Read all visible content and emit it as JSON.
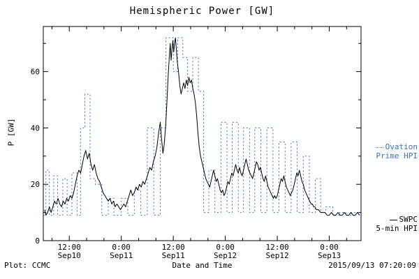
{
  "page": {
    "background": "#ffffff"
  },
  "footer": {
    "left": "Plot: CCMC",
    "right": "2015/09/13 07:20:09"
  },
  "legend": {
    "ovation_line1": "Ovation",
    "ovation_line2": "Prime HPI",
    "swpc_line1": "SWPC",
    "swpc_line2": "5-min HPI"
  },
  "chart_data": {
    "type": "line",
    "title": "Hemispheric Power [GW]",
    "xlabel": "Date and Time",
    "ylabel": "P [GW]",
    "xlim": [
      6,
      79.33
    ],
    "ylim": [
      0,
      76
    ],
    "grid": false,
    "legend_position": "right-outside",
    "x_axis_unit": "hours from 2015-09-10 00:00",
    "x_major_ticks": [
      {
        "t": 12,
        "line1": "12:00",
        "line2": "Sep10"
      },
      {
        "t": 24,
        "line1": "0:00",
        "line2": "Sep11"
      },
      {
        "t": 36,
        "line1": "12:00",
        "line2": "Sep11"
      },
      {
        "t": 48,
        "line1": "0:00",
        "line2": "Sep12"
      },
      {
        "t": 60,
        "line1": "12:00",
        "line2": "Sep12"
      },
      {
        "t": 72,
        "line1": "0:00",
        "line2": "Sep13"
      }
    ],
    "x_minor_step": 4,
    "y_major_ticks": [
      0,
      20,
      40,
      60
    ],
    "y_minor_ticks": [
      10,
      30,
      50,
      70
    ],
    "colors": {
      "ovation": "#3f6fbf",
      "swpc": "#000000",
      "frame": "#000000"
    },
    "series": [
      {
        "name": "Ovation Prime HPI",
        "color": "#3f6fbf",
        "style": "dotted-step",
        "steps": [
          [
            6,
            6.6,
            9
          ],
          [
            6.6,
            7.4,
            25
          ],
          [
            7.4,
            8.4,
            9
          ],
          [
            8.4,
            9.3,
            23
          ],
          [
            9.3,
            10.5,
            9
          ],
          [
            10.5,
            11.5,
            22
          ],
          [
            11.5,
            12.6,
            9
          ],
          [
            12.6,
            13.8,
            24
          ],
          [
            13.8,
            14.6,
            9
          ],
          [
            14.6,
            15.6,
            40
          ],
          [
            15.6,
            16.8,
            52
          ],
          [
            16.8,
            18,
            22
          ],
          [
            18,
            19.5,
            20
          ],
          [
            19.5,
            21,
            9
          ],
          [
            21,
            22.3,
            15
          ],
          [
            22.3,
            24,
            9
          ],
          [
            24,
            25.5,
            15
          ],
          [
            25.5,
            27,
            9
          ],
          [
            27,
            28.5,
            18
          ],
          [
            28.5,
            30,
            9
          ],
          [
            30,
            31.5,
            40
          ],
          [
            31.5,
            33,
            9
          ],
          [
            33,
            34.3,
            40
          ],
          [
            34.3,
            36,
            72
          ],
          [
            36,
            37,
            60
          ],
          [
            37,
            38.2,
            72
          ],
          [
            38.2,
            39.3,
            65
          ],
          [
            39.3,
            40.5,
            53
          ],
          [
            40.5,
            41.8,
            65
          ],
          [
            41.8,
            43,
            53
          ],
          [
            43,
            44.2,
            10
          ],
          [
            44.2,
            45.6,
            25
          ],
          [
            45.6,
            47,
            10
          ],
          [
            47,
            48.4,
            42
          ],
          [
            48.4,
            49.6,
            10
          ],
          [
            49.6,
            51,
            42
          ],
          [
            51,
            52.2,
            10
          ],
          [
            52.2,
            53.6,
            40
          ],
          [
            53.6,
            54.8,
            10
          ],
          [
            54.8,
            56.2,
            40
          ],
          [
            56.2,
            57.6,
            10
          ],
          [
            57.6,
            59,
            40
          ],
          [
            59,
            60.4,
            10
          ],
          [
            60.4,
            61.8,
            35
          ],
          [
            61.8,
            63.2,
            10
          ],
          [
            63.2,
            64.6,
            35
          ],
          [
            64.6,
            66,
            10
          ],
          [
            66,
            67.4,
            30
          ],
          [
            67.4,
            68.8,
            10
          ],
          [
            68.8,
            70,
            22
          ],
          [
            70,
            71.2,
            10
          ],
          [
            71.2,
            72.8,
            12
          ],
          [
            72.8,
            74.4,
            9
          ],
          [
            74.4,
            75.8,
            10
          ],
          [
            75.8,
            77.2,
            9
          ],
          [
            77.2,
            79.3,
            10
          ]
        ]
      },
      {
        "name": "SWPC 5-min HPI",
        "color": "#000000",
        "style": "solid",
        "points": [
          [
            6.3,
            11
          ],
          [
            6.6,
            9
          ],
          [
            7,
            10
          ],
          [
            7.4,
            12
          ],
          [
            7.8,
            10
          ],
          [
            8.2,
            12
          ],
          [
            8.6,
            14
          ],
          [
            9,
            13
          ],
          [
            9.4,
            15
          ],
          [
            9.8,
            13
          ],
          [
            10.2,
            12
          ],
          [
            10.6,
            14
          ],
          [
            11,
            13
          ],
          [
            11.4,
            15
          ],
          [
            11.8,
            14
          ],
          [
            12.2,
            16
          ],
          [
            12.6,
            15
          ],
          [
            13,
            17
          ],
          [
            13.4,
            20
          ],
          [
            13.8,
            23
          ],
          [
            14.2,
            25
          ],
          [
            14.6,
            24
          ],
          [
            15,
            27
          ],
          [
            15.4,
            30
          ],
          [
            15.8,
            32
          ],
          [
            16.2,
            29
          ],
          [
            16.6,
            31
          ],
          [
            17,
            27
          ],
          [
            17.4,
            25
          ],
          [
            17.8,
            27
          ],
          [
            18.2,
            24
          ],
          [
            18.6,
            22
          ],
          [
            19,
            21
          ],
          [
            19.4,
            19
          ],
          [
            19.8,
            17
          ],
          [
            20.2,
            16
          ],
          [
            20.6,
            15
          ],
          [
            21,
            14
          ],
          [
            21.4,
            15
          ],
          [
            21.8,
            13
          ],
          [
            22.2,
            14
          ],
          [
            22.6,
            12
          ],
          [
            23,
            13
          ],
          [
            23.4,
            12
          ],
          [
            23.8,
            11
          ],
          [
            24.2,
            12
          ],
          [
            24.6,
            13
          ],
          [
            25,
            12
          ],
          [
            25.4,
            14
          ],
          [
            25.8,
            16
          ],
          [
            26.2,
            18
          ],
          [
            26.6,
            16
          ],
          [
            27,
            17
          ],
          [
            27.4,
            19
          ],
          [
            27.8,
            18
          ],
          [
            28.2,
            20
          ],
          [
            28.6,
            19
          ],
          [
            29,
            21
          ],
          [
            29.4,
            20
          ],
          [
            29.8,
            22
          ],
          [
            30.2,
            24
          ],
          [
            30.6,
            26
          ],
          [
            31,
            25
          ],
          [
            31.4,
            28
          ],
          [
            31.8,
            30
          ],
          [
            32.2,
            33
          ],
          [
            32.6,
            38
          ],
          [
            33,
            42
          ],
          [
            33.3,
            36
          ],
          [
            33.6,
            31
          ],
          [
            33.9,
            34
          ],
          [
            34.2,
            40
          ],
          [
            34.5,
            48
          ],
          [
            34.8,
            58
          ],
          [
            35.1,
            66
          ],
          [
            35.3,
            70
          ],
          [
            35.5,
            64
          ],
          [
            35.7,
            68
          ],
          [
            35.9,
            71
          ],
          [
            36.1,
            67
          ],
          [
            36.3,
            70
          ],
          [
            36.5,
            72
          ],
          [
            36.7,
            68
          ],
          [
            36.9,
            64
          ],
          [
            37.2,
            60
          ],
          [
            37.5,
            55
          ],
          [
            37.8,
            52
          ],
          [
            38.1,
            54
          ],
          [
            38.4,
            56
          ],
          [
            38.7,
            54
          ],
          [
            39,
            57
          ],
          [
            39.3,
            55
          ],
          [
            39.6,
            58
          ],
          [
            39.9,
            56
          ],
          [
            40.2,
            57
          ],
          [
            40.5,
            54
          ],
          [
            40.8,
            52
          ],
          [
            41.1,
            49
          ],
          [
            41.4,
            44
          ],
          [
            41.7,
            38
          ],
          [
            42,
            33
          ],
          [
            42.3,
            30
          ],
          [
            42.6,
            28
          ],
          [
            42.9,
            26
          ],
          [
            43.2,
            24
          ],
          [
            43.5,
            22
          ],
          [
            43.8,
            21
          ],
          [
            44.1,
            20
          ],
          [
            44.4,
            19
          ],
          [
            44.7,
            21
          ],
          [
            45,
            23
          ],
          [
            45.3,
            25
          ],
          [
            45.6,
            23
          ],
          [
            45.9,
            21
          ],
          [
            46.2,
            22
          ],
          [
            46.5,
            20
          ],
          [
            46.8,
            18
          ],
          [
            47.1,
            17
          ],
          [
            47.4,
            18
          ],
          [
            47.7,
            16
          ],
          [
            48,
            17
          ],
          [
            48.3,
            19
          ],
          [
            48.6,
            21
          ],
          [
            48.9,
            20
          ],
          [
            49.2,
            22
          ],
          [
            49.5,
            24
          ],
          [
            49.8,
            23
          ],
          [
            50.1,
            25
          ],
          [
            50.4,
            27
          ],
          [
            50.7,
            25
          ],
          [
            51,
            24
          ],
          [
            51.3,
            26
          ],
          [
            51.6,
            24
          ],
          [
            51.9,
            23
          ],
          [
            52.2,
            25
          ],
          [
            52.5,
            27
          ],
          [
            52.8,
            29
          ],
          [
            53.1,
            27
          ],
          [
            53.4,
            25
          ],
          [
            53.7,
            24
          ],
          [
            54,
            23
          ],
          [
            54.3,
            22
          ],
          [
            54.6,
            24
          ],
          [
            54.9,
            26
          ],
          [
            55.2,
            28
          ],
          [
            55.5,
            27
          ],
          [
            55.8,
            25
          ],
          [
            56.1,
            26
          ],
          [
            56.4,
            24
          ],
          [
            56.7,
            22
          ],
          [
            57,
            21
          ],
          [
            57.3,
            23
          ],
          [
            57.6,
            21
          ],
          [
            57.9,
            19
          ],
          [
            58.2,
            18
          ],
          [
            58.5,
            17
          ],
          [
            58.8,
            16
          ],
          [
            59.1,
            15
          ],
          [
            59.4,
            16
          ],
          [
            59.7,
            15
          ],
          [
            60,
            16
          ],
          [
            60.3,
            18
          ],
          [
            60.6,
            20
          ],
          [
            60.9,
            22
          ],
          [
            61.2,
            21
          ],
          [
            61.5,
            23
          ],
          [
            61.8,
            21
          ],
          [
            62.1,
            19
          ],
          [
            62.4,
            18
          ],
          [
            62.7,
            17
          ],
          [
            63,
            16
          ],
          [
            63.3,
            17
          ],
          [
            63.6,
            18
          ],
          [
            63.9,
            20
          ],
          [
            64.2,
            22
          ],
          [
            64.5,
            24
          ],
          [
            64.8,
            23
          ],
          [
            65.1,
            25
          ],
          [
            65.4,
            23
          ],
          [
            65.7,
            21
          ],
          [
            66,
            20
          ],
          [
            66.3,
            18
          ],
          [
            66.6,
            17
          ],
          [
            66.9,
            16
          ],
          [
            67.2,
            15
          ],
          [
            67.5,
            14
          ],
          [
            67.8,
            13
          ],
          [
            68.1,
            13
          ],
          [
            68.4,
            12
          ],
          [
            68.7,
            12
          ],
          [
            69,
            11
          ],
          [
            69.5,
            11
          ],
          [
            70,
            10
          ],
          [
            70.5,
            10
          ],
          [
            71,
            10
          ],
          [
            71.5,
            9
          ],
          [
            72,
            9
          ],
          [
            72.5,
            10
          ],
          [
            73,
            9
          ],
          [
            73.5,
            9
          ],
          [
            74,
            10
          ],
          [
            74.5,
            9
          ],
          [
            75,
            9
          ],
          [
            75.5,
            10
          ],
          [
            76,
            9
          ],
          [
            76.5,
            9
          ],
          [
            77,
            10
          ],
          [
            77.5,
            9
          ],
          [
            78,
            9
          ],
          [
            78.5,
            10
          ],
          [
            79,
            9
          ]
        ]
      }
    ]
  }
}
